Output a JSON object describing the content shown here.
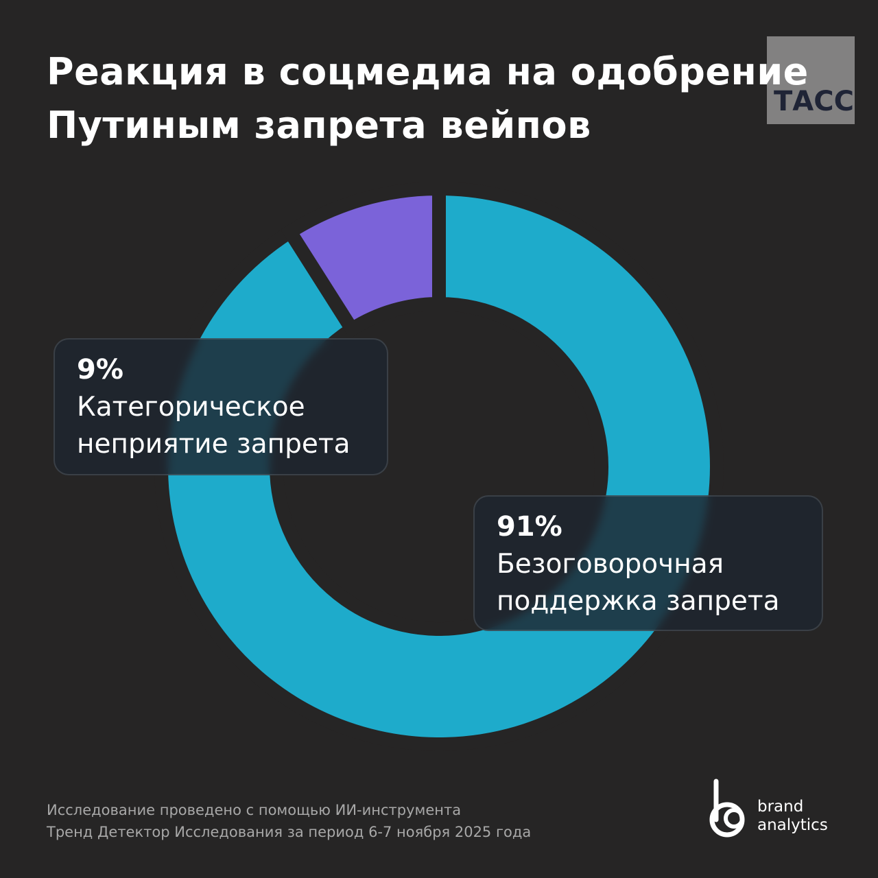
{
  "chart_data": {
    "type": "pie",
    "title": "Реакция в соцмедиа на одобрение Путиным запрета вейпов",
    "categories": [
      "Безоговорочная поддержка запрета",
      "Категорическое неприятие запрета"
    ],
    "values": [
      91,
      9
    ],
    "value_labels": [
      "91%",
      "9%"
    ],
    "colors": [
      "#1eabcb",
      "#7b63d9"
    ]
  },
  "watermark": "ТАСС",
  "footnote": [
    "Исследование проведено с помощью ИИ-инструмента",
    "Тренд Детектор Исследования за период 6-7 ноября 2025 года"
  ],
  "logo": [
    "brand",
    "analytics"
  ]
}
